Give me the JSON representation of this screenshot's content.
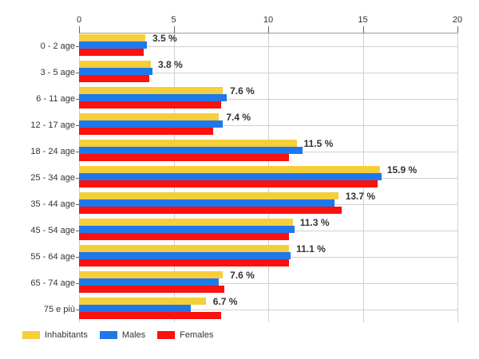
{
  "chart_data": {
    "type": "bar",
    "orientation": "horizontal",
    "title": "",
    "categories": [
      "0 - 2 age",
      "3 - 5 age",
      "6 - 11 age",
      "12 - 17 age",
      "18 - 24 age",
      "25 - 34 age",
      "35 - 44 age",
      "45 - 54 age",
      "55 - 64 age",
      "65 - 74 age",
      "75 e più"
    ],
    "series": [
      {
        "name": "Inhabitants",
        "color": "#F5CE3B",
        "values": [
          3.5,
          3.8,
          7.6,
          7.4,
          11.5,
          15.9,
          13.7,
          11.3,
          11.1,
          7.6,
          6.7
        ]
      },
      {
        "name": "Males",
        "color": "#1F78EB",
        "values": [
          3.6,
          3.9,
          7.8,
          7.6,
          11.8,
          16.0,
          13.5,
          11.4,
          11.2,
          7.4,
          5.9
        ]
      },
      {
        "name": "Females",
        "color": "#FB110D",
        "values": [
          3.4,
          3.7,
          7.5,
          7.1,
          11.1,
          15.8,
          13.9,
          11.1,
          11.1,
          7.7,
          7.5
        ]
      }
    ],
    "bar_labels": [
      "3.5 %",
      "3.8 %",
      "7.6 %",
      "7.4 %",
      "11.5 %",
      "15.9 %",
      "13.7 %",
      "11.3 %",
      "11.1 %",
      "7.6 %",
      "6.7 %"
    ],
    "bar_labels_series": "Inhabitants",
    "xlim": [
      0,
      20
    ],
    "x_ticks": [
      0,
      5,
      10,
      15,
      20
    ],
    "x_tick_labels": [
      "0",
      "5",
      "10",
      "15",
      "20"
    ],
    "grid": true,
    "legend_position": "bottom-left"
  },
  "colors": {
    "background": "#ffffff",
    "axis_line": "#9a9a9a",
    "gridline": "#d0d0d0",
    "tick": "#666666",
    "text": "#333333"
  }
}
